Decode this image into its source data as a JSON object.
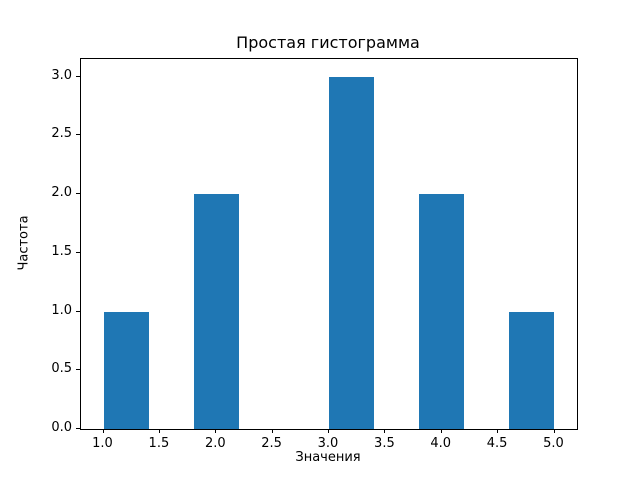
{
  "figure": {
    "background": "#ffffff",
    "axes_border_color": "#000000",
    "text_color": "#000000"
  },
  "chart_data": {
    "type": "bar",
    "subtype": "histogram",
    "title": "Простая гистограмма",
    "xlabel": "Значения",
    "ylabel": "Частота",
    "bar_color": "#1f77b4",
    "bin_edges": [
      1.0,
      1.4,
      1.8,
      2.2,
      2.6,
      3.0,
      3.4,
      3.8,
      4.2,
      4.6,
      5.0
    ],
    "counts": [
      1,
      0,
      2,
      0,
      0,
      3,
      0,
      2,
      0,
      1
    ],
    "xlim": [
      0.8,
      5.2
    ],
    "ylim": [
      0,
      3.15
    ],
    "xticks": [
      1.0,
      1.5,
      2.0,
      2.5,
      3.0,
      3.5,
      4.0,
      4.5,
      5.0
    ],
    "xtick_labels": [
      "1.0",
      "1.5",
      "2.0",
      "2.5",
      "3.0",
      "3.5",
      "4.0",
      "4.5",
      "5.0"
    ],
    "yticks": [
      0.0,
      0.5,
      1.0,
      1.5,
      2.0,
      2.5,
      3.0
    ],
    "ytick_labels": [
      "0.0",
      "0.5",
      "1.0",
      "1.5",
      "2.0",
      "2.5",
      "3.0"
    ],
    "grid": false,
    "legend": null
  }
}
